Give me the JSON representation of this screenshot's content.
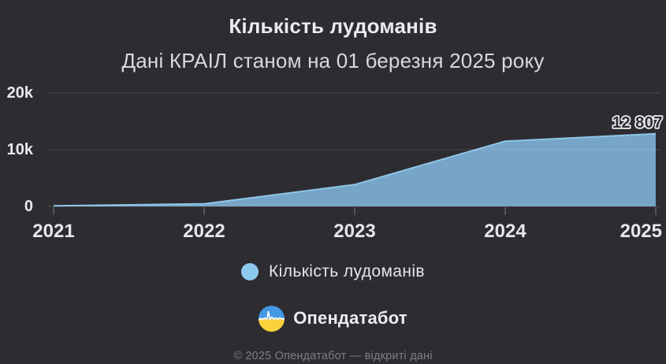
{
  "header": {
    "title": "Кількість лудоманів",
    "subtitle": "Дані КРАІЛ станом на 01 березня 2025 року"
  },
  "chart_data": {
    "type": "area",
    "title": "Кількість лудоманів",
    "subtitle": "Дані КРАІЛ станом на 01 березня 2025 року",
    "xlabel": "",
    "ylabel": "",
    "x_labels": [
      "2021",
      "2022",
      "2023",
      "2024",
      "2025"
    ],
    "x_range": [
      2021,
      2025
    ],
    "ylim": [
      0,
      20000
    ],
    "y_ticks": [
      {
        "value": 0,
        "label": "0"
      },
      {
        "value": 10000,
        "label": "10k"
      },
      {
        "value": 20000,
        "label": "20k"
      }
    ],
    "grid": true,
    "series": [
      {
        "name": "Кількість лудоманів",
        "color": "#76a5c8",
        "line_color": "#8ec5e8",
        "points": [
          {
            "x": 2021,
            "value": 100
          },
          {
            "x": 2022,
            "value": 455
          },
          {
            "x": 2023,
            "value": 3850
          },
          {
            "x": 2024,
            "value": 11500
          },
          {
            "x": 2025,
            "value": 12807
          }
        ]
      }
    ],
    "annotation": {
      "label": "12 807",
      "value": 12807
    },
    "legend": {
      "position": "bottom",
      "items": [
        {
          "label": "Кількість лудоманів",
          "color": "#8dc8ee"
        }
      ]
    }
  },
  "branding": {
    "logo_text": "Опендатабот",
    "logo_icon": "opendatabot-pulse-circle"
  },
  "footer": {
    "copyright": "© 2025 Опендатабот — відкриті дані"
  },
  "colors": {
    "background": "#2d2c30",
    "area_fill": "#76a5c8",
    "area_line": "#8ec5e8",
    "legend_dot": "#8dc8ee",
    "grid": "rgba(255,255,255,0.14)",
    "tick": "#535258",
    "annotation_fill": "#2d2c30",
    "annotation_stroke": "#ededef"
  }
}
